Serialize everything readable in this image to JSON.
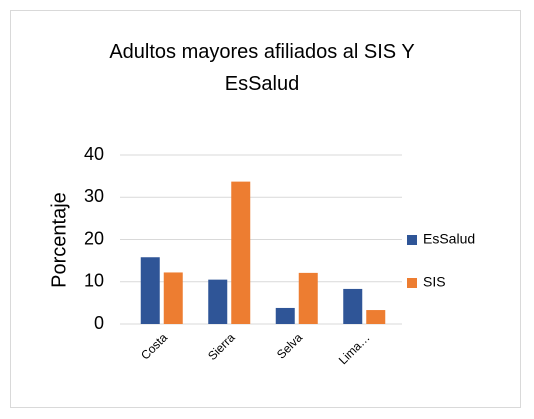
{
  "chart_data": {
    "type": "bar",
    "title": "Adultos mayores afiliados al SIS Y EsSalud",
    "ylabel": "Porcentaje",
    "categories": [
      "Costa",
      "Sierra",
      "Selva",
      "Lima…"
    ],
    "series": [
      {
        "name": "EsSalud",
        "color": "#2f5597",
        "values": [
          15.8,
          10.5,
          3.8,
          8.3
        ]
      },
      {
        "name": "SIS",
        "color": "#ed7d31",
        "values": [
          12.2,
          33.7,
          12.1,
          3.3
        ]
      }
    ],
    "ylim": [
      0,
      40
    ],
    "yticks": [
      0,
      10,
      20,
      30,
      40
    ],
    "grid": true,
    "legend": "right"
  }
}
